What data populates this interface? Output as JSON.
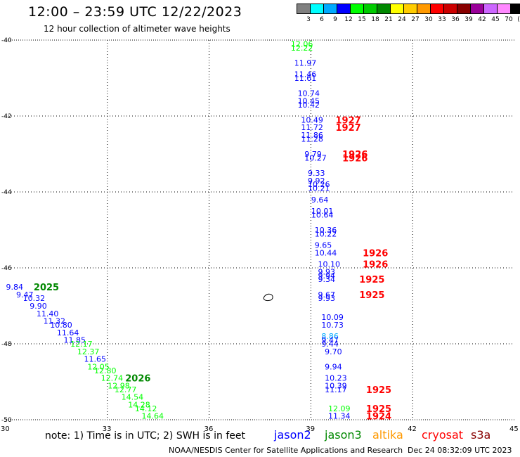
{
  "header": {
    "title": "12:00 – 23:59 UTC 12/22/2023",
    "subtitle": "12 hour collection of altimeter wave heights"
  },
  "colorbar": {
    "colors": [
      "#808080",
      "#00ffff",
      "#00aaff",
      "#0000ff",
      "#00ff00",
      "#00cc00",
      "#008800",
      "#ffff00",
      "#ffcc00",
      "#ff9900",
      "#ff0000",
      "#cc0000",
      "#880000",
      "#990099",
      "#cc66ff",
      "#ff88ff",
      "#000000"
    ],
    "labels": [
      "3",
      "6",
      "9",
      "12",
      "15",
      "18",
      "21",
      "24",
      "27",
      "30",
      "33",
      "36",
      "39",
      "42",
      "45",
      "70",
      "(ft)"
    ]
  },
  "footer": {
    "note": "note: 1) Time is in UTC; 2) SWH is in feet",
    "missions": [
      {
        "name": "jason2",
        "color": "#0000ff"
      },
      {
        "name": "jason3",
        "color": "#008800"
      },
      {
        "name": "altika",
        "color": "#ff9900"
      },
      {
        "name": "cryosat",
        "color": "#ff0000"
      },
      {
        "name": "s3a",
        "color": "#880000"
      }
    ],
    "credit": "NOAA/NESDIS Center for Satellite Applications and Research",
    "timestamp": "Dec 24 08:32:09 UTC 2023"
  },
  "chart_data": {
    "type": "scatter",
    "title": "12:00 – 23:59 UTC 12/22/2023",
    "xlim": [
      30,
      45
    ],
    "ylim": [
      -50,
      -40
    ],
    "x_ticks": [
      "30",
      "33",
      "36",
      "39",
      "42",
      "45"
    ],
    "y_ticks": [
      "-40",
      "-42",
      "-44",
      "-46",
      "-48",
      "-50"
    ],
    "grid": true,
    "series": [
      {
        "name": "jason2",
        "points": [
          {
            "x": 38.7,
            "y": -40.1,
            "label": "12.06",
            "color": "#00ff00"
          },
          {
            "x": 38.7,
            "y": -40.2,
            "label": "12.22",
            "color": "#00ff00"
          },
          {
            "x": 38.8,
            "y": -40.6,
            "label": "11.97",
            "color": "#0000ff"
          },
          {
            "x": 38.8,
            "y": -40.9,
            "label": "11.46",
            "color": "#0000ff"
          },
          {
            "x": 38.8,
            "y": -41.0,
            "label": "11.61",
            "color": "#0000ff"
          },
          {
            "x": 38.9,
            "y": -41.4,
            "label": "10.74",
            "color": "#0000ff"
          },
          {
            "x": 38.9,
            "y": -41.6,
            "label": "10.45",
            "color": "#0000ff"
          },
          {
            "x": 38.9,
            "y": -41.7,
            "label": "10.42",
            "color": "#0000ff"
          },
          {
            "x": 39.0,
            "y": -42.1,
            "label": "10.49",
            "color": "#0000ff"
          },
          {
            "x": 39.0,
            "y": -42.3,
            "label": "11.72",
            "color": "#0000ff"
          },
          {
            "x": 39.0,
            "y": -42.5,
            "label": "11.86",
            "color": "#0000ff"
          },
          {
            "x": 39.0,
            "y": -42.6,
            "label": "11.28",
            "color": "#0000ff"
          },
          {
            "x": 39.1,
            "y": -43.0,
            "label": "9.79",
            "color": "#0000ff"
          },
          {
            "x": 39.1,
            "y": -43.1,
            "label": "10.27",
            "color": "#0000ff"
          },
          {
            "x": 39.2,
            "y": -43.5,
            "label": "9.33",
            "color": "#0000ff"
          },
          {
            "x": 39.2,
            "y": -43.7,
            "label": "9.92",
            "color": "#0000ff"
          },
          {
            "x": 39.2,
            "y": -43.8,
            "label": "10.26",
            "color": "#0000ff"
          },
          {
            "x": 39.2,
            "y": -43.9,
            "label": "10.21",
            "color": "#0000ff"
          },
          {
            "x": 39.3,
            "y": -44.2,
            "label": "9.64",
            "color": "#0000ff"
          },
          {
            "x": 39.3,
            "y": -44.5,
            "label": "10.01",
            "color": "#0000ff"
          },
          {
            "x": 39.3,
            "y": -44.6,
            "label": "10.64",
            "color": "#0000ff"
          },
          {
            "x": 39.4,
            "y": -45.0,
            "label": "10.36",
            "color": "#0000ff"
          },
          {
            "x": 39.4,
            "y": -45.1,
            "label": "10.22",
            "color": "#0000ff"
          },
          {
            "x": 39.4,
            "y": -45.4,
            "label": "9.65",
            "color": "#0000ff"
          },
          {
            "x": 39.4,
            "y": -45.6,
            "label": "10.44",
            "color": "#0000ff"
          },
          {
            "x": 39.5,
            "y": -45.9,
            "label": "10.10",
            "color": "#0000ff"
          },
          {
            "x": 39.5,
            "y": -46.1,
            "label": "9.93",
            "color": "#0000ff"
          },
          {
            "x": 39.5,
            "y": -46.2,
            "label": "9.94",
            "color": "#0000ff"
          },
          {
            "x": 39.5,
            "y": -46.3,
            "label": "9.34",
            "color": "#0000ff"
          },
          {
            "x": 39.5,
            "y": -46.7,
            "label": "9.67",
            "color": "#0000ff"
          },
          {
            "x": 39.5,
            "y": -46.8,
            "label": "9.93",
            "color": "#0000ff"
          },
          {
            "x": 39.6,
            "y": -47.3,
            "label": "10.09",
            "color": "#0000ff"
          },
          {
            "x": 39.6,
            "y": -47.5,
            "label": "10.73",
            "color": "#0000ff"
          },
          {
            "x": 39.6,
            "y": -47.8,
            "label": "8.86",
            "color": "#00aaff"
          },
          {
            "x": 39.6,
            "y": -47.9,
            "label": "9.47",
            "color": "#0000ff"
          },
          {
            "x": 39.6,
            "y": -48.0,
            "label": "9.44",
            "color": "#0000ff"
          },
          {
            "x": 39.7,
            "y": -48.2,
            "label": "9.70",
            "color": "#0000ff"
          },
          {
            "x": 39.7,
            "y": -48.6,
            "label": "9.94",
            "color": "#0000ff"
          },
          {
            "x": 39.7,
            "y": -48.9,
            "label": "10.23",
            "color": "#0000ff"
          },
          {
            "x": 39.7,
            "y": -49.1,
            "label": "10.39",
            "color": "#0000ff"
          },
          {
            "x": 39.7,
            "y": -49.2,
            "label": "11.17",
            "color": "#0000ff"
          },
          {
            "x": 39.8,
            "y": -49.7,
            "label": "12.09",
            "color": "#00ff00"
          },
          {
            "x": 39.8,
            "y": -49.9,
            "label": "11.34",
            "color": "#0000ff"
          }
        ]
      },
      {
        "name": "jason3",
        "points": [
          {
            "x": 30.3,
            "y": -46.5,
            "label": "9.84",
            "color": "#0000ff"
          },
          {
            "x": 30.6,
            "y": -46.7,
            "label": "9.47",
            "color": "#0000ff"
          },
          {
            "x": 30.8,
            "y": -46.8,
            "label": "10.32",
            "color": "#0000ff"
          },
          {
            "x": 31.0,
            "y": -47.0,
            "label": "9.90",
            "color": "#0000ff"
          },
          {
            "x": 31.2,
            "y": -47.2,
            "label": "11.40",
            "color": "#0000ff"
          },
          {
            "x": 31.4,
            "y": -47.4,
            "label": "11.32",
            "color": "#0000ff"
          },
          {
            "x": 31.6,
            "y": -47.5,
            "label": "10.80",
            "color": "#0000ff"
          },
          {
            "x": 31.8,
            "y": -47.7,
            "label": "11.64",
            "color": "#0000ff"
          },
          {
            "x": 32.0,
            "y": -47.9,
            "label": "11.85",
            "color": "#0000ff"
          },
          {
            "x": 32.2,
            "y": -48.0,
            "label": "12.17",
            "color": "#00ff00"
          },
          {
            "x": 32.4,
            "y": -48.2,
            "label": "12.37",
            "color": "#00ff00"
          },
          {
            "x": 32.6,
            "y": -48.4,
            "label": "11.65",
            "color": "#0000ff"
          },
          {
            "x": 32.7,
            "y": -48.6,
            "label": "12.05",
            "color": "#00ff00"
          },
          {
            "x": 32.9,
            "y": -48.7,
            "label": "12.80",
            "color": "#00ff00"
          },
          {
            "x": 33.1,
            "y": -48.9,
            "label": "12.74",
            "color": "#00ff00"
          },
          {
            "x": 33.3,
            "y": -49.1,
            "label": "12.98",
            "color": "#00ff00"
          },
          {
            "x": 33.5,
            "y": -49.2,
            "label": "12.77",
            "color": "#00ff00"
          },
          {
            "x": 33.7,
            "y": -49.4,
            "label": "14.54",
            "color": "#00ff00"
          },
          {
            "x": 33.9,
            "y": -49.6,
            "label": "14.28",
            "color": "#00ff00"
          },
          {
            "x": 34.1,
            "y": -49.7,
            "label": "14.12",
            "color": "#00ff00"
          },
          {
            "x": 34.3,
            "y": -49.9,
            "label": "14.64",
            "color": "#00ff00"
          }
        ]
      }
    ],
    "time_labels": [
      {
        "x": 31.2,
        "y": -46.5,
        "label": "2025",
        "color": "#008800"
      },
      {
        "x": 33.9,
        "y": -48.9,
        "label": "2026",
        "color": "#008800"
      },
      {
        "x": 40.1,
        "y": -42.1,
        "label": "1927",
        "color": "#ff0000"
      },
      {
        "x": 40.1,
        "y": -42.3,
        "label": "1927",
        "color": "#ff0000"
      },
      {
        "x": 40.3,
        "y": -43.0,
        "label": "1926",
        "color": "#ff0000"
      },
      {
        "x": 40.3,
        "y": -43.1,
        "label": "1926",
        "color": "#ff0000"
      },
      {
        "x": 40.9,
        "y": -45.6,
        "label": "1926",
        "color": "#ff0000"
      },
      {
        "x": 40.9,
        "y": -45.9,
        "label": "1926",
        "color": "#ff0000"
      },
      {
        "x": 40.8,
        "y": -46.3,
        "label": "1925",
        "color": "#ff0000"
      },
      {
        "x": 40.8,
        "y": -46.7,
        "label": "1925",
        "color": "#ff0000"
      },
      {
        "x": 41.0,
        "y": -49.2,
        "label": "1925",
        "color": "#ff0000"
      },
      {
        "x": 41.0,
        "y": -49.7,
        "label": "1925",
        "color": "#ff0000"
      },
      {
        "x": 41.0,
        "y": -49.9,
        "label": "1924",
        "color": "#ff0000"
      }
    ]
  }
}
